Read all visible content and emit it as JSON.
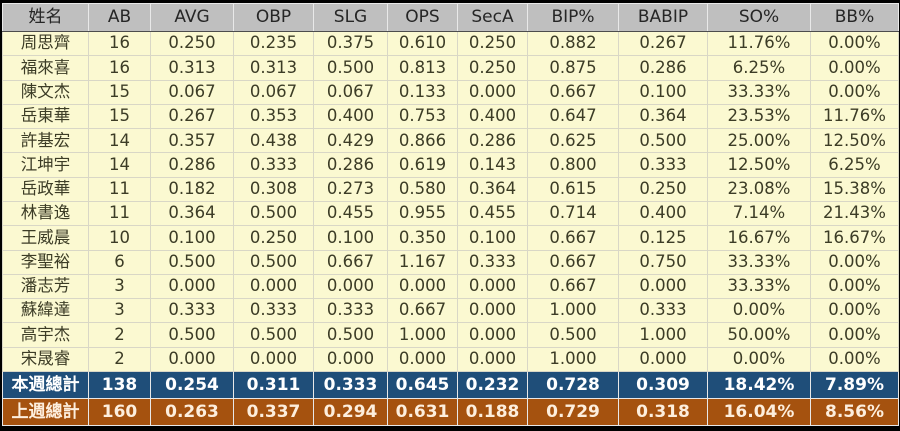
{
  "chart_data": {
    "type": "table",
    "title": "",
    "columns": [
      "姓名",
      "AB",
      "AVG",
      "OBP",
      "SLG",
      "OPS",
      "SecA",
      "BIP%",
      "BABIP",
      "SO%",
      "BB%"
    ],
    "rows": [
      [
        "周思齊",
        "16",
        "0.250",
        "0.235",
        "0.375",
        "0.610",
        "0.250",
        "0.882",
        "0.267",
        "11.76%",
        "0.00%"
      ],
      [
        "福來喜",
        "16",
        "0.313",
        "0.313",
        "0.500",
        "0.813",
        "0.250",
        "0.875",
        "0.286",
        "6.25%",
        "0.00%"
      ],
      [
        "陳文杰",
        "15",
        "0.067",
        "0.067",
        "0.067",
        "0.133",
        "0.000",
        "0.667",
        "0.100",
        "33.33%",
        "0.00%"
      ],
      [
        "岳東華",
        "15",
        "0.267",
        "0.353",
        "0.400",
        "0.753",
        "0.400",
        "0.647",
        "0.364",
        "23.53%",
        "11.76%"
      ],
      [
        "許基宏",
        "14",
        "0.357",
        "0.438",
        "0.429",
        "0.866",
        "0.286",
        "0.625",
        "0.500",
        "25.00%",
        "12.50%"
      ],
      [
        "江坤宇",
        "14",
        "0.286",
        "0.333",
        "0.286",
        "0.619",
        "0.143",
        "0.800",
        "0.333",
        "12.50%",
        "6.25%"
      ],
      [
        "岳政華",
        "11",
        "0.182",
        "0.308",
        "0.273",
        "0.580",
        "0.364",
        "0.615",
        "0.250",
        "23.08%",
        "15.38%"
      ],
      [
        "林書逸",
        "11",
        "0.364",
        "0.500",
        "0.455",
        "0.955",
        "0.455",
        "0.714",
        "0.400",
        "7.14%",
        "21.43%"
      ],
      [
        "王威晨",
        "10",
        "0.100",
        "0.250",
        "0.100",
        "0.350",
        "0.100",
        "0.667",
        "0.125",
        "16.67%",
        "16.67%"
      ],
      [
        "李聖裕",
        "6",
        "0.500",
        "0.500",
        "0.667",
        "1.167",
        "0.333",
        "0.667",
        "0.750",
        "33.33%",
        "0.00%"
      ],
      [
        "潘志芳",
        "3",
        "0.000",
        "0.000",
        "0.000",
        "0.000",
        "0.000",
        "0.667",
        "0.000",
        "33.33%",
        "0.00%"
      ],
      [
        "蘇緯達",
        "3",
        "0.333",
        "0.333",
        "0.333",
        "0.667",
        "0.000",
        "1.000",
        "0.333",
        "0.00%",
        "0.00%"
      ],
      [
        "高宇杰",
        "2",
        "0.500",
        "0.500",
        "0.500",
        "1.000",
        "0.000",
        "0.500",
        "1.000",
        "50.00%",
        "0.00%"
      ],
      [
        "宋晟睿",
        "2",
        "0.000",
        "0.000",
        "0.000",
        "0.000",
        "0.000",
        "1.000",
        "0.000",
        "0.00%",
        "0.00%"
      ]
    ],
    "totals": [
      {
        "key": "this_week",
        "label": "本週總計",
        "values": [
          "138",
          "0.254",
          "0.311",
          "0.333",
          "0.645",
          "0.232",
          "0.728",
          "0.309",
          "18.42%",
          "7.89%"
        ]
      },
      {
        "key": "last_week",
        "label": "上週總計",
        "values": [
          "160",
          "0.263",
          "0.337",
          "0.294",
          "0.631",
          "0.188",
          "0.729",
          "0.318",
          "16.04%",
          "8.56%"
        ]
      }
    ],
    "layout_hints": {
      "grid": true,
      "header_position": "top",
      "name_column_align": "center",
      "value_align": "center"
    }
  },
  "colors": {
    "header_bg": "#bfbfbf",
    "header_text": "#262626",
    "row_bg": "#fbf9d1",
    "row_text": "#3c3c26",
    "total_this_week_bg": "#1f4e79",
    "total_this_week_text": "#ffffff",
    "total_last_week_bg": "#a5520f",
    "total_last_week_text": "#fdeedd",
    "outer_frame": "#000000"
  }
}
